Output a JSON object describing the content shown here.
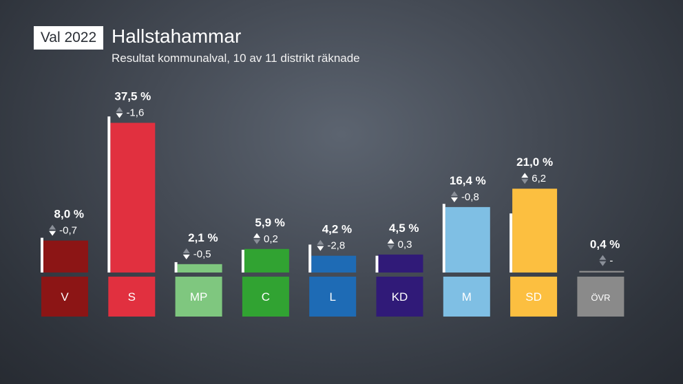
{
  "header": {
    "badge": "Val 2022",
    "title": "Hallstahammar",
    "subtitle": "Resultat kommunalval, 10 av 11 distrikt räknade"
  },
  "chart_data": {
    "type": "bar",
    "categories": [
      "V",
      "S",
      "MP",
      "C",
      "L",
      "KD",
      "M",
      "SD",
      "ÖVR"
    ],
    "values": [
      8.0,
      37.5,
      2.1,
      5.9,
      4.2,
      4.5,
      16.4,
      21.0,
      0.4
    ],
    "value_labels": [
      "8,0 %",
      "37,5 %",
      "2,1 %",
      "5,9 %",
      "4,2 %",
      "4,5 %",
      "16,4 %",
      "21,0 %",
      "0,4 %"
    ],
    "previous_values": [
      8.7,
      39.1,
      2.6,
      5.7,
      7.0,
      4.2,
      17.2,
      14.8,
      null
    ],
    "change_labels": [
      "-0,7",
      "-1,6",
      "-0,5",
      "0,2",
      "-2,8",
      "0,3",
      "-0,8",
      "6,2",
      "-"
    ],
    "colors": [
      "#8c1515",
      "#e1303f",
      "#7fc77f",
      "#31a332",
      "#1e6bb5",
      "#301a78",
      "#7fbfe4",
      "#fcbf40",
      "#8a8a8a"
    ],
    "ylim": [
      0,
      40
    ]
  }
}
